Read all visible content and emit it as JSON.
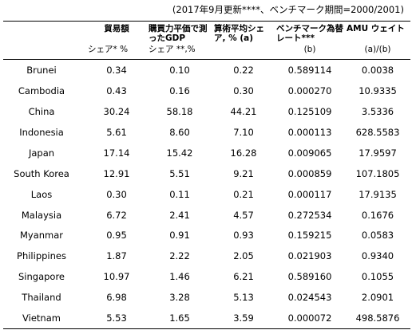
{
  "note": "(2017年9月更新****、ベンチマーク期間=2000/2001)",
  "headers": {
    "col1_top": "貿易額",
    "col1_bottom": "シェア* %",
    "col2_top": "購買力平価で測ったGDP",
    "col2_bottom": "シェア **,%",
    "col3_top": "算術平均シェア, % (a)",
    "col4_top": "ベンチマーク為替レート***",
    "col4_bottom": "(b)",
    "col5_top": "AMU ウェイト",
    "col5_bottom": "(a)/(b)"
  },
  "rows": [
    {
      "country": "Brunei",
      "trade": "0.34",
      "gdp": "0.10",
      "avg": "0.22",
      "rate": "0.589114",
      "weight": "0.0038"
    },
    {
      "country": "Cambodia",
      "trade": "0.43",
      "gdp": "0.16",
      "avg": "0.30",
      "rate": "0.000270",
      "weight": "10.9335"
    },
    {
      "country": "China",
      "trade": "30.24",
      "gdp": "58.18",
      "avg": "44.21",
      "rate": "0.125109",
      "weight": "3.5336"
    },
    {
      "country": "Indonesia",
      "trade": "5.61",
      "gdp": "8.60",
      "avg": "7.10",
      "rate": "0.000113",
      "weight": "628.5583"
    },
    {
      "country": "Japan",
      "trade": "17.14",
      "gdp": "15.42",
      "avg": "16.28",
      "rate": "0.009065",
      "weight": "17.9597"
    },
    {
      "country": "South Korea",
      "trade": "12.91",
      "gdp": "5.51",
      "avg": "9.21",
      "rate": "0.000859",
      "weight": "107.1805"
    },
    {
      "country": "Laos",
      "trade": "0.30",
      "gdp": "0.11",
      "avg": "0.21",
      "rate": "0.000117",
      "weight": "17.9135"
    },
    {
      "country": "Malaysia",
      "trade": "6.72",
      "gdp": "2.41",
      "avg": "4.57",
      "rate": "0.272534",
      "weight": "0.1676"
    },
    {
      "country": "Myanmar",
      "trade": "0.95",
      "gdp": "0.91",
      "avg": "0.93",
      "rate": "0.159215",
      "weight": "0.0583"
    },
    {
      "country": "Philippines",
      "trade": "1.87",
      "gdp": "2.22",
      "avg": "2.05",
      "rate": "0.021903",
      "weight": "0.9340"
    },
    {
      "country": "Singapore",
      "trade": "10.97",
      "gdp": "1.46",
      "avg": "6.21",
      "rate": "0.589160",
      "weight": "0.1055"
    },
    {
      "country": "Thailand",
      "trade": "6.98",
      "gdp": "3.28",
      "avg": "5.13",
      "rate": "0.024543",
      "weight": "2.0901"
    },
    {
      "country": "Vietnam",
      "trade": "5.53",
      "gdp": "1.65",
      "avg": "3.59",
      "rate": "0.000072",
      "weight": "498.5876"
    }
  ]
}
